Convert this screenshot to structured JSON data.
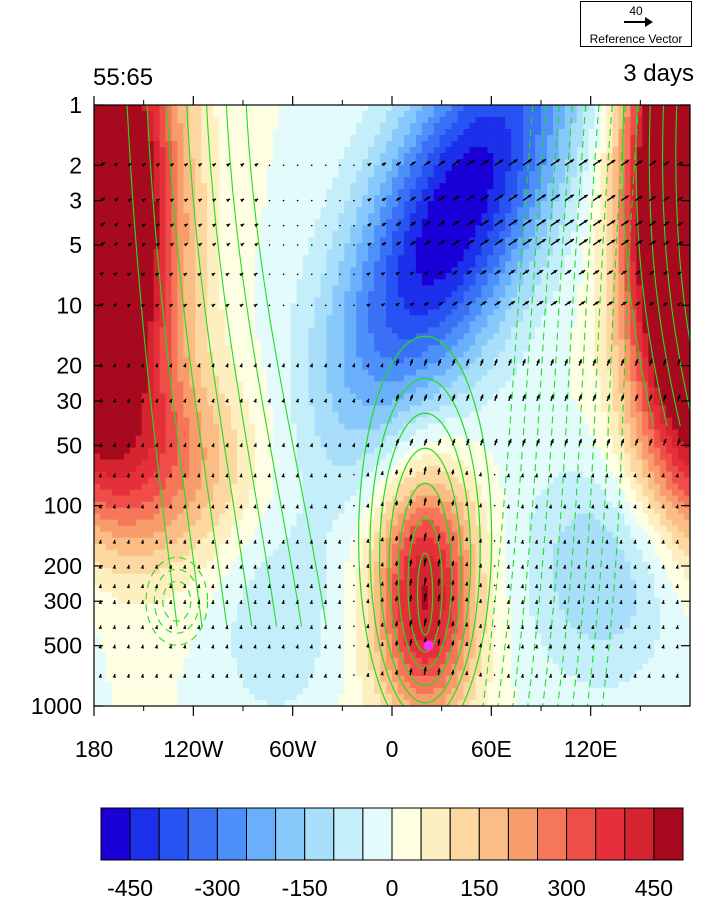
{
  "header": {
    "left_title": "55:65",
    "right_title": "3 days"
  },
  "reference_vector": {
    "value": "40",
    "label": "Reference Vector"
  },
  "chart_data": {
    "type": "heatmap",
    "title": "",
    "xlabel": "",
    "ylabel": "",
    "x_axis": {
      "range": [
        -180,
        180
      ],
      "ticks": [
        -180,
        -120,
        -60,
        0,
        60,
        120
      ],
      "tick_labels": [
        "180",
        "120W",
        "60W",
        "0",
        "60E",
        "120E"
      ]
    },
    "y_axis": {
      "scale": "log",
      "reversed": true,
      "range": [
        1000,
        1
      ],
      "ticks": [
        1,
        2,
        3,
        5,
        10,
        20,
        30,
        50,
        100,
        200,
        300,
        500,
        1000
      ],
      "tick_labels": [
        "1",
        "2",
        "3",
        "5",
        "10",
        "20",
        "30",
        "50",
        "100",
        "200",
        "300",
        "500",
        "1000"
      ]
    },
    "shading_levels": [
      -500,
      -450,
      -400,
      -350,
      -300,
      -250,
      -200,
      -150,
      -100,
      -50,
      0,
      50,
      100,
      150,
      200,
      250,
      300,
      350,
      400,
      450,
      500
    ],
    "shading_colors": [
      "#1a00d6",
      "#1c2fea",
      "#2753f2",
      "#3a70f6",
      "#4e90fa",
      "#6aaffb",
      "#88c9fb",
      "#a8def9",
      "#c4effa",
      "#e4fbfb",
      "#fefee2",
      "#fdefc0",
      "#fcd8a0",
      "#fbbd86",
      "#f89c6c",
      "#f57658",
      "#ee4d48",
      "#e53039",
      "#d52430",
      "#a70a1e"
    ],
    "colorbar": {
      "tick_values": [
        -450,
        -300,
        -150,
        0,
        150,
        300,
        450
      ],
      "tick_labels": [
        "-450",
        "-300",
        "-150",
        "0",
        "150",
        "300",
        "450"
      ]
    },
    "features": [
      {
        "name": "positive anomaly column",
        "lon_center": 20,
        "p_center": 300,
        "value": 420
      },
      {
        "name": "negative anomaly upper",
        "lon_center": 40,
        "p_center": 3,
        "value": -480
      },
      {
        "name": "positive anomaly west",
        "lon_center": -165,
        "p_center": 3,
        "value": 500
      },
      {
        "name": "positive anomaly east",
        "lon_center": 170,
        "p_center": 2,
        "value": 520
      }
    ],
    "marker": {
      "lon": 22,
      "p": 500,
      "color": "#ff33ff"
    },
    "contours": {
      "color": "#22dd22",
      "positive_style": "solid",
      "negative_style": "dashed"
    },
    "vectors": {
      "color": "#000000",
      "reference_value": 40
    }
  }
}
